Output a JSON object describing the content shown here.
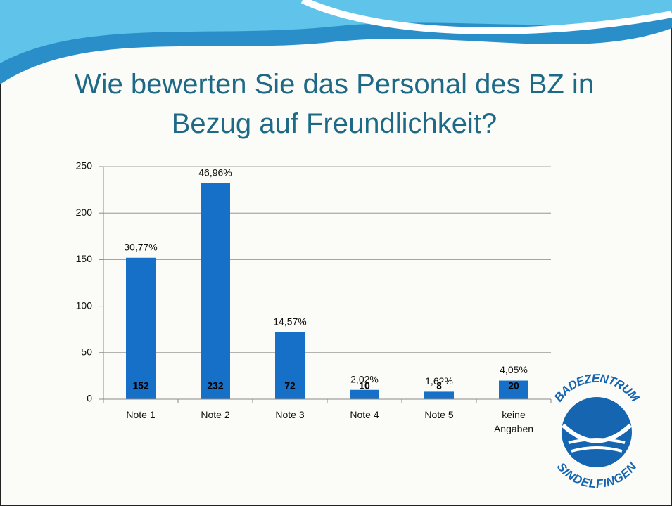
{
  "chart_data": {
    "type": "bar",
    "title": "Wie bewerten Sie das Personal des BZ in Bezug auf Freundlichkeit?",
    "categories": [
      "Note 1",
      "Note 2",
      "Note 3",
      "Note 4",
      "Note 5",
      "keine Angaben"
    ],
    "values": [
      152,
      232,
      72,
      10,
      8,
      20
    ],
    "percent_labels": [
      "30,77%",
      "46,96%",
      "14,57%",
      "2,02%",
      "1,62%",
      "4,05%"
    ],
    "color": "#1770c8",
    "ylim": [
      0,
      250
    ],
    "yticks": [
      0,
      50,
      100,
      150,
      200,
      250
    ],
    "grid": true
  },
  "logo": {
    "top": "BADEZENTRUM",
    "bottom": "SINDELFINGEN"
  }
}
